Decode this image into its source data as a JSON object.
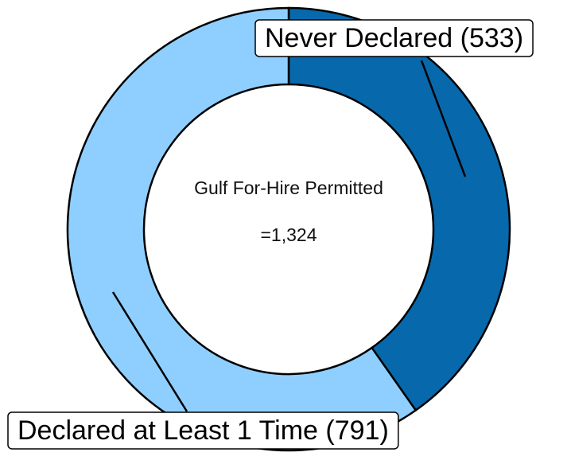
{
  "chart_data": {
    "type": "pie",
    "labels": [
      "Never Declared (533)",
      "Declared at Least 1 Time (791)"
    ],
    "values": [
      533,
      791
    ],
    "colors": [
      "#0868ac",
      "#8fcfff"
    ],
    "donut": true,
    "center_title": "Gulf For-Hire Permitted",
    "center_value": "=1,324"
  }
}
